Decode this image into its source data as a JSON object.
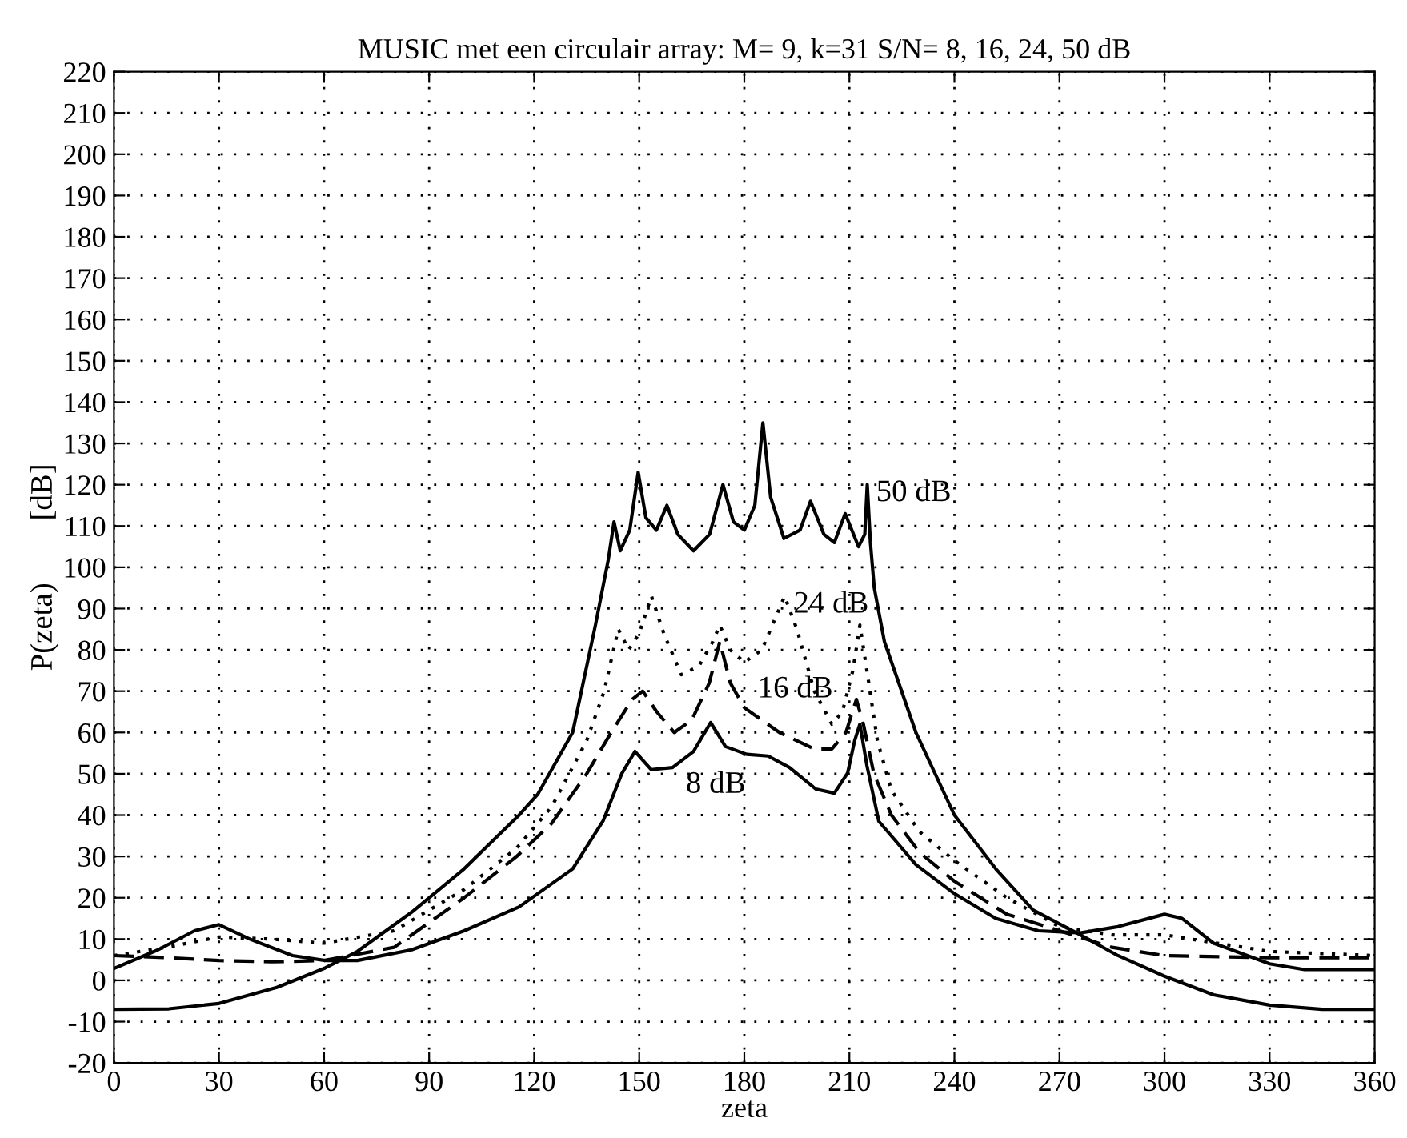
{
  "chart_data": {
    "type": "line",
    "title": "MUSIC met een circulair array: M= 9, k=31 S/N= 8, 16, 24, 50 dB",
    "xlabel": "zeta",
    "ylabel": "P(zeta)        [dB]",
    "xlim": [
      0,
      360
    ],
    "xticks": [
      0,
      30,
      60,
      90,
      120,
      150,
      180,
      210,
      240,
      270,
      300,
      330,
      360
    ],
    "ylim": [
      -20,
      220
    ],
    "yticks": [
      -20,
      -10,
      0,
      10,
      20,
      30,
      40,
      50,
      60,
      70,
      80,
      90,
      100,
      110,
      120,
      130,
      140,
      150,
      160,
      170,
      180,
      190,
      200,
      210,
      220
    ],
    "grid": true,
    "legend": false,
    "marker": "none",
    "series": [
      {
        "color": "#000000",
        "line_style": "solid",
        "x": [
          0,
          15.7,
          30,
          46.5,
          60.3,
          69.5,
          85,
          100,
          115.7,
          121,
          131,
          137.5,
          141.2,
          142.8,
          144.6,
          147.3,
          149.7,
          151.9,
          154.9,
          157.9,
          161,
          165.5,
          170.1,
          173.9,
          176.9,
          180,
          183,
          185.3,
          187.5,
          191.3,
          195.9,
          198.9,
          202.7,
          205.7,
          208.8,
          212.6,
          214.4,
          215.1,
          216,
          217.1,
          220,
          229,
          240,
          251.8,
          262.5,
          276,
          286.7,
          300,
          314,
          330,
          345,
          360
        ],
        "values": [
          -7,
          -6.9,
          -5.6,
          -1.7,
          3,
          7,
          16.5,
          27,
          40,
          45,
          60,
          86,
          102,
          111,
          104,
          109,
          123,
          112,
          109,
          115,
          108,
          104,
          108,
          120,
          111,
          109,
          115,
          135,
          117,
          107,
          109,
          116,
          108,
          106,
          113,
          105,
          108,
          120,
          106,
          95,
          82,
          60,
          40,
          27,
          17,
          11,
          6,
          1,
          -3.5,
          -6,
          -7,
          -7
        ]
      },
      {
        "color": "#000000",
        "line_style": "dotted",
        "x": [
          0,
          15,
          30,
          45,
          60,
          80,
          100,
          115,
          125,
          135,
          140,
          144,
          147,
          150,
          153.5,
          157,
          162,
          167,
          171,
          173,
          176,
          180,
          185,
          189,
          191.5,
          195,
          200,
          205,
          208,
          211,
          213,
          215,
          218,
          222,
          230,
          240,
          255,
          270,
          285,
          300,
          315,
          330,
          345,
          360
        ],
        "values": [
          6,
          8,
          10.5,
          10,
          9,
          12,
          22,
          32,
          42,
          58,
          70,
          85,
          80,
          84,
          93,
          84,
          74,
          76,
          82,
          86,
          80,
          77,
          80,
          88,
          93,
          85,
          70,
          62,
          65,
          75,
          86,
          75,
          58,
          46,
          36,
          29,
          20,
          13,
          11,
          11,
          9,
          7,
          6.5,
          6
        ]
      },
      {
        "color": "#000000",
        "line_style": "dashed",
        "x": [
          0,
          15,
          30,
          45,
          60,
          80,
          100,
          115,
          125,
          135,
          142,
          148,
          151,
          155,
          160,
          165,
          170,
          173,
          176,
          180,
          185,
          190,
          195,
          200,
          205,
          209,
          212,
          214,
          217,
          222,
          230,
          240,
          255,
          270,
          285,
          300,
          330,
          360
        ],
        "values": [
          6,
          5.5,
          4.8,
          4.5,
          4.8,
          8,
          20,
          30,
          38,
          50,
          60,
          68,
          70,
          65,
          60,
          63,
          72,
          82,
          72,
          66,
          63,
          60,
          58,
          56,
          56,
          60,
          68,
          62,
          50,
          40,
          31,
          24,
          16,
          12,
          8,
          6,
          5.5,
          5.5
        ]
      },
      {
        "color": "#000000",
        "line_style": "solid",
        "x": [
          0,
          12.6,
          23,
          30,
          38.8,
          51,
          60.3,
          69.5,
          85,
          100,
          115.7,
          131,
          139.7,
          145,
          148.8,
          153.4,
          159.5,
          165.5,
          170.4,
          174.6,
          180.7,
          186.8,
          192.9,
          200.4,
          205.7,
          209.5,
          211.5,
          213,
          215,
          218.4,
          229,
          240,
          251.8,
          264,
          276,
          286.7,
          300,
          305,
          314,
          330,
          340,
          360
        ],
        "values": [
          2.9,
          7.4,
          12,
          13.5,
          10,
          6,
          4.8,
          4.8,
          7.4,
          12,
          17.8,
          27,
          38.6,
          50,
          55.4,
          51,
          51.5,
          55.4,
          62.4,
          56.6,
          54.7,
          54.3,
          51.5,
          46.3,
          45.3,
          50.2,
          58,
          62,
          52,
          38.5,
          28,
          21,
          15,
          12,
          11.5,
          13,
          16,
          15,
          9,
          4,
          2.6,
          2.6
        ]
      }
    ],
    "annotations": [
      {
        "text": "50 dB",
        "x": 215.1,
        "y": 120
      },
      {
        "text": "24 dB",
        "x": 191.5,
        "y": 93
      },
      {
        "text": "16 dB",
        "x": 180,
        "y": 66
      },
      {
        "text": "8 dB",
        "x": 159.5,
        "y": 51.5
      }
    ]
  }
}
